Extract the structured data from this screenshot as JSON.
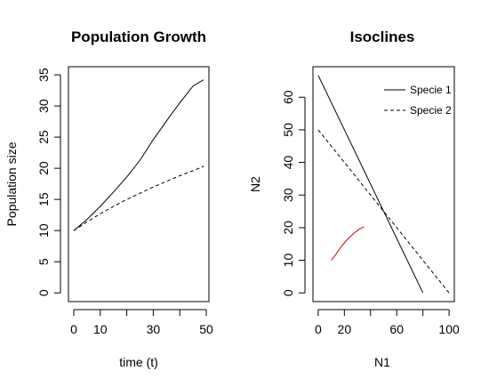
{
  "chart_data": [
    {
      "type": "line",
      "title": "Population Growth",
      "xlabel": "time (t)",
      "ylabel": "Population size",
      "xlim": [
        -2,
        51
      ],
      "ylim": [
        -1.4,
        36.3
      ],
      "xticks": [
        0,
        10,
        20,
        30,
        40,
        50
      ],
      "xtick_labels": [
        "0",
        "10",
        "",
        "30",
        "",
        "50"
      ],
      "yticks": [
        0,
        5,
        10,
        15,
        20,
        25,
        30,
        35
      ],
      "ytick_labels": [
        "0",
        "5",
        "10",
        "15",
        "20",
        "25",
        "30",
        "35"
      ],
      "grid": false,
      "series": [
        {
          "style": "solid",
          "color": "#000000",
          "x": [
            0,
            5,
            10,
            15,
            20,
            25,
            30,
            35,
            40,
            45,
            49
          ],
          "y": [
            10,
            11.8,
            13.9,
            16.2,
            18.6,
            21.3,
            24.6,
            27.6,
            30.5,
            33.2,
            34.2
          ]
        },
        {
          "style": "dashed",
          "color": "#000000",
          "x": [
            0,
            5,
            10,
            15,
            20,
            25,
            30,
            35,
            40,
            45,
            49
          ],
          "y": [
            10,
            11.4,
            12.7,
            13.9,
            15.0,
            16.0,
            17.0,
            17.9,
            18.8,
            19.6,
            20.3
          ]
        }
      ]
    },
    {
      "type": "line",
      "title": "Isoclines",
      "xlabel": "N1",
      "ylabel": "N2",
      "xlim": [
        -4,
        104
      ],
      "ylim": [
        -2.67,
        69.35
      ],
      "xticks": [
        0,
        20,
        40,
        60,
        80,
        100
      ],
      "xtick_labels": [
        "0",
        "20",
        "",
        "60",
        "",
        "100"
      ],
      "yticks": [
        0,
        10,
        20,
        30,
        40,
        50,
        60
      ],
      "ytick_labels": [
        "0",
        "10",
        "20",
        "30",
        "40",
        "50",
        "60"
      ],
      "grid": false,
      "legend_position": "top-right",
      "legend": [
        {
          "label": "Specie 1",
          "style": "solid"
        },
        {
          "label": "Specie 2",
          "style": "dashed"
        }
      ],
      "series": [
        {
          "name": "Specie 1",
          "style": "solid",
          "color": "#000000",
          "x": [
            0,
            80
          ],
          "y": [
            66.7,
            0
          ]
        },
        {
          "name": "Specie 2",
          "style": "dashed",
          "color": "#000000",
          "x": [
            0,
            100
          ],
          "y": [
            50,
            0
          ]
        },
        {
          "style": "solid",
          "color": "#cc0000",
          "x": [
            10,
            13,
            17,
            22,
            27,
            31,
            35
          ],
          "y": [
            10,
            11.5,
            13.9,
            16.3,
            18.2,
            19.4,
            20.3
          ]
        }
      ]
    }
  ]
}
